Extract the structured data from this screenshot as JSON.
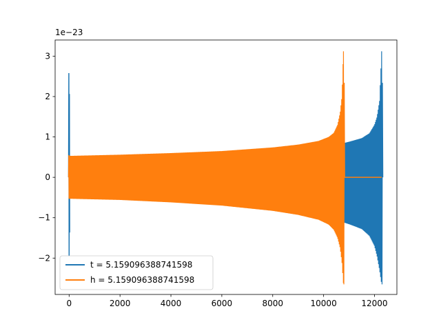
{
  "chart_data": {
    "type": "line",
    "title": "",
    "xlabel": "",
    "ylabel": "",
    "offset_label": "1e−23",
    "xlim": [
      -550,
      12880
    ],
    "ylim": [
      -2.9,
      3.4
    ],
    "xticks": [
      0,
      2000,
      4000,
      6000,
      8000,
      10000,
      12000
    ],
    "xtick_labels": [
      "0",
      "2000",
      "4000",
      "6000",
      "8000",
      "10000",
      "12000"
    ],
    "yticks": [
      -2,
      -1,
      0,
      1,
      2,
      3
    ],
    "ytick_labels": [
      "−2",
      "−1",
      "0",
      "1",
      "2",
      "3"
    ],
    "grid": false,
    "legend": {
      "placement": "lower-left"
    },
    "series": [
      {
        "name": "t = 5.159096388741598",
        "color": "#1f77b4",
        "spike_start": {
          "x": 0,
          "y_max": 2.58,
          "y_min": -1.95
        },
        "envelope": {
          "x": [
            0,
            2000,
            4000,
            6000,
            8000,
            9000,
            10000,
            10500,
            10800,
            11000,
            11500,
            11800,
            12000,
            12100,
            12200,
            12280
          ],
          "upper": [
            0.52,
            0.54,
            0.57,
            0.62,
            0.7,
            0.74,
            0.79,
            0.82,
            0.85,
            0.88,
            0.97,
            1.09,
            1.3,
            1.5,
            1.9,
            3.12
          ],
          "lower": [
            -0.52,
            -0.54,
            -0.59,
            -0.67,
            -0.8,
            -0.9,
            -1.0,
            -1.07,
            -1.12,
            -1.16,
            -1.28,
            -1.45,
            -1.7,
            -1.95,
            -2.3,
            -2.65
          ]
        }
      },
      {
        "name": "h = 5.159096388741598",
        "color": "#ff7f0e",
        "spike_start": {
          "x": 0,
          "y_max": 0.55,
          "y_min": -0.52
        },
        "envelope": {
          "x": [
            0,
            2000,
            4000,
            6000,
            8000,
            9000,
            9800,
            10200,
            10400,
            10550,
            10650,
            10720,
            10780
          ],
          "upper": [
            0.53,
            0.56,
            0.6,
            0.65,
            0.74,
            0.81,
            0.9,
            1.0,
            1.1,
            1.3,
            1.6,
            2.0,
            3.12
          ],
          "lower": [
            -0.53,
            -0.56,
            -0.62,
            -0.7,
            -0.83,
            -0.93,
            -1.05,
            -1.17,
            -1.3,
            -1.5,
            -1.75,
            -2.1,
            -2.65
          ]
        },
        "flat_tail": {
          "x_start": 10780,
          "x_end": 12280,
          "y": 0
        }
      }
    ]
  }
}
